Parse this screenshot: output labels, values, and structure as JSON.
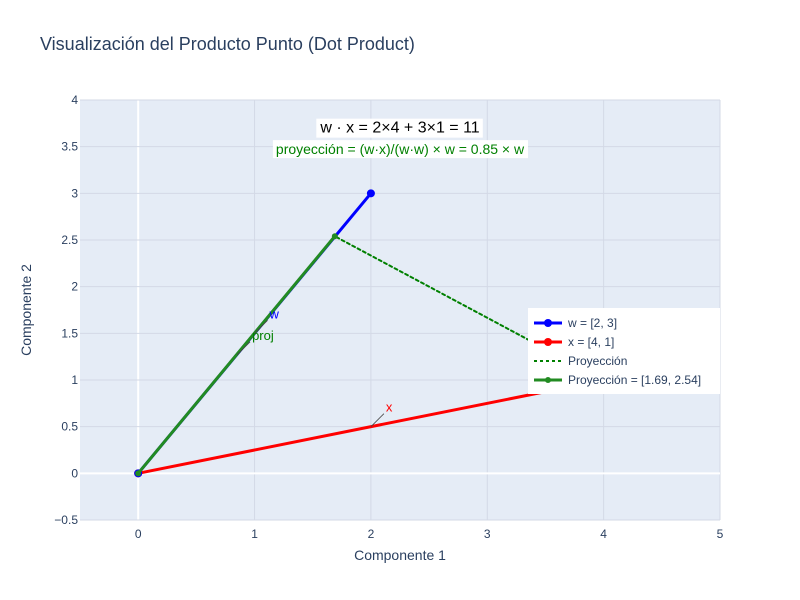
{
  "chart_data": {
    "type": "line",
    "title": "Visualización del Producto Punto (Dot Product)",
    "xlabel": "Componente 1",
    "ylabel": "Componente 2",
    "xlim": [
      -0.5,
      5
    ],
    "ylim": [
      -0.5,
      4
    ],
    "xticks": [
      0,
      1,
      2,
      3,
      4,
      5
    ],
    "xtick_labels": [
      "0",
      "1",
      "2",
      "3",
      "4",
      "5"
    ],
    "yticks": [
      -0.5,
      0,
      0.5,
      1,
      1.5,
      2,
      2.5,
      3,
      3.5,
      4
    ],
    "ytick_labels": [
      "−0.5",
      "0",
      "0.5",
      "1",
      "1.5",
      "2",
      "2.5",
      "3",
      "3.5",
      "4"
    ],
    "grid": true,
    "legend_position": "right",
    "colors": {
      "plot_bg": "#e5ecf6",
      "grid": "#ffffff",
      "w": "#0000ff",
      "x": "#ff0000",
      "proj": "#008000",
      "proj_vec": "#228b22"
    },
    "series": [
      {
        "name": "w = [2, 3]",
        "x": [
          0,
          2
        ],
        "y": [
          0,
          3
        ],
        "color": "#0000ff",
        "dash": "solid",
        "width": 3,
        "marker": 7
      },
      {
        "name": "x = [4, 1]",
        "x": [
          0,
          4
        ],
        "y": [
          0,
          1
        ],
        "color": "#ff0000",
        "dash": "solid",
        "width": 3,
        "marker": 7
      },
      {
        "name": "Proyección",
        "x": [
          4,
          1.69
        ],
        "y": [
          1,
          2.54
        ],
        "color": "#008000",
        "dash": "dot",
        "width": 2,
        "marker": 0
      },
      {
        "name": "Proyección = [1.69, 2.54]",
        "x": [
          0,
          1.69
        ],
        "y": [
          0,
          2.54
        ],
        "color": "#228b22",
        "dash": "solid",
        "width": 3,
        "marker": 5
      }
    ],
    "annotations": [
      {
        "text": "w · x = 2×4 + 3×1 = 11",
        "x": 2.25,
        "y": 3.65,
        "style": "main"
      },
      {
        "text": "proyección = (w·x)/(w·w) × w = 0.85 × w",
        "x": 2.25,
        "y": 3.42,
        "style": "sub"
      },
      {
        "text": "w",
        "x": 1.0,
        "y": 1.5,
        "color": "#0000ff",
        "style": "label"
      },
      {
        "text": "proj",
        "x": 0.85,
        "y": 1.27,
        "color": "#008000",
        "style": "label"
      },
      {
        "text": "x",
        "x": 2.0,
        "y": 0.5,
        "color": "#ff0000",
        "style": "label"
      }
    ]
  }
}
